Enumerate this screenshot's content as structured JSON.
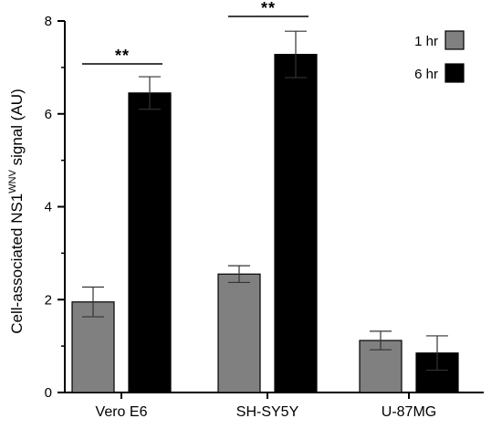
{
  "chart_data": {
    "type": "bar",
    "categories": [
      "Vero E6",
      "SH-SY5Y",
      "U-87MG"
    ],
    "series": [
      {
        "name": "1 hr",
        "color": "#808080",
        "values": [
          1.95,
          2.55,
          1.12
        ],
        "errors": [
          0.32,
          0.18,
          0.2
        ]
      },
      {
        "name": "6 hr",
        "color": "#000000",
        "values": [
          6.45,
          7.28,
          0.85
        ],
        "errors": [
          0.35,
          0.5,
          0.37
        ]
      }
    ],
    "ylabel_main": "Cell-associated NS1",
    "ylabel_superscript": "WNV",
    "ylabel_suffix": " signal (AU)",
    "xlabel": "",
    "ylim": [
      0,
      8
    ],
    "yticks": [
      0,
      2,
      4,
      6,
      8
    ],
    "yticks_minor": [
      1,
      3,
      5,
      7
    ],
    "significance": [
      {
        "category_index": 0,
        "label": "**"
      },
      {
        "category_index": 1,
        "label": "**"
      }
    ],
    "legend_position": "top-right",
    "grid": false
  }
}
